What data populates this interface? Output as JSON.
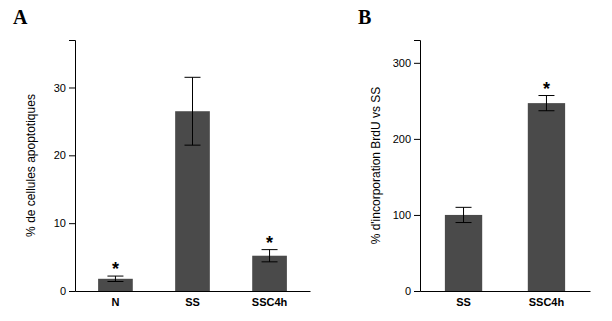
{
  "chart_data": [
    {
      "type": "bar",
      "title": "A",
      "categories": [
        "N",
        "SS",
        "SSC4h"
      ],
      "values": [
        1.8,
        26.5,
        5.2
      ],
      "errors": [
        0.4,
        5.0,
        0.9
      ],
      "ylabel": "% de cellules apoptotiques",
      "ylim": [
        0,
        37
      ],
      "yticks": [
        0,
        10,
        20,
        30
      ],
      "color": "#4a4a4a",
      "annotations": [
        {
          "text": "*",
          "category": "N"
        },
        {
          "text": "*",
          "category": "SSC4h"
        }
      ]
    },
    {
      "type": "bar",
      "title": "B",
      "categories": [
        "SS",
        "SSC4h"
      ],
      "values": [
        100,
        247
      ],
      "errors": [
        10,
        10
      ],
      "ylabel": "% d'incorporation BrdU vs SS",
      "ylim": [
        0,
        330
      ],
      "yticks": [
        0,
        100,
        200,
        300
      ],
      "color": "#4a4a4a",
      "annotations": [
        {
          "text": "*",
          "category": "SSC4h"
        }
      ]
    }
  ]
}
